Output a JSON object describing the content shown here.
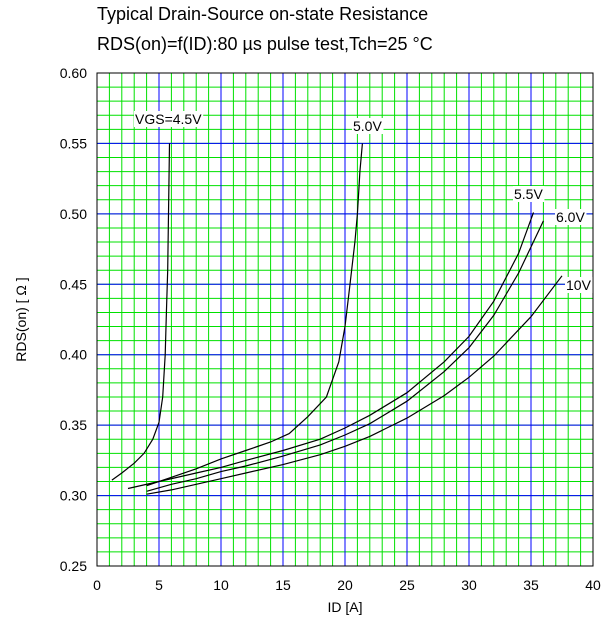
{
  "chart_data": {
    "type": "line",
    "title": "Typical Drain-Source on-state Resistance",
    "subtitle": "RDS(on)=f(ID):80 µs pulse test,Tch=25 °C",
    "xlabel": "ID [A]",
    "ylabel": "RDS(on) [ Ω ]",
    "xlim": [
      0,
      40
    ],
    "ylim": [
      0.25,
      0.6
    ],
    "xticks": [
      0,
      5,
      10,
      15,
      20,
      25,
      30,
      35,
      40
    ],
    "yticks": [
      0.25,
      0.3,
      0.35,
      0.4,
      0.45,
      0.5,
      0.55,
      0.6
    ],
    "xtick_labels": [
      "0",
      "5",
      "10",
      "15",
      "20",
      "25",
      "30",
      "35",
      "40"
    ],
    "ytick_labels": [
      "0.25",
      "0.30",
      "0.35",
      "0.40",
      "0.45",
      "0.50",
      "0.55",
      "0.60"
    ],
    "grid": true,
    "minor_grid_step_x": 1,
    "minor_grid_step_y": 0.01,
    "colors": {
      "minor_grid": "#00e000",
      "major_grid": "#0000ff",
      "curves": "#000000"
    },
    "series": [
      {
        "name": "VGS=4.5V",
        "x": [
          1.2,
          2.0,
          3.0,
          3.8,
          4.5,
          5.0,
          5.3,
          5.5,
          5.6,
          5.7,
          5.75,
          5.8,
          5.85
        ],
        "y": [
          0.311,
          0.316,
          0.323,
          0.33,
          0.34,
          0.352,
          0.37,
          0.4,
          0.43,
          0.46,
          0.49,
          0.52,
          0.55
        ]
      },
      {
        "name": "5.0V",
        "x": [
          4.0,
          6.0,
          8.0,
          10.0,
          12.0,
          14.0,
          15.5,
          17.0,
          18.5,
          19.5,
          20.0,
          20.4,
          20.8,
          21.0,
          21.2,
          21.4
        ],
        "y": [
          0.307,
          0.313,
          0.319,
          0.326,
          0.332,
          0.338,
          0.344,
          0.356,
          0.37,
          0.395,
          0.42,
          0.45,
          0.48,
          0.5,
          0.53,
          0.55
        ]
      },
      {
        "name": "5.5V",
        "x": [
          2.5,
          5.0,
          8.0,
          10.0,
          12.0,
          15.0,
          18.0,
          20.0,
          22.0,
          25.0,
          28.0,
          30.0,
          32.0,
          34.0,
          35.2
        ],
        "y": [
          0.305,
          0.31,
          0.316,
          0.32,
          0.325,
          0.332,
          0.34,
          0.348,
          0.357,
          0.373,
          0.395,
          0.413,
          0.438,
          0.472,
          0.501
        ]
      },
      {
        "name": "6.0V",
        "x": [
          4.0,
          6.0,
          8.0,
          10.0,
          12.0,
          15.0,
          18.0,
          20.0,
          22.0,
          25.0,
          28.0,
          30.0,
          32.0,
          34.0,
          36.0
        ],
        "y": [
          0.303,
          0.308,
          0.312,
          0.317,
          0.321,
          0.328,
          0.336,
          0.343,
          0.351,
          0.367,
          0.388,
          0.405,
          0.428,
          0.458,
          0.495
        ]
      },
      {
        "name": "10V",
        "x": [
          4.0,
          6.0,
          8.0,
          10.0,
          12.0,
          15.0,
          18.0,
          20.0,
          22.0,
          25.0,
          28.0,
          30.0,
          32.0,
          35.0,
          37.5
        ],
        "y": [
          0.301,
          0.304,
          0.308,
          0.312,
          0.316,
          0.322,
          0.329,
          0.335,
          0.342,
          0.355,
          0.371,
          0.384,
          0.399,
          0.427,
          0.456
        ]
      }
    ]
  }
}
